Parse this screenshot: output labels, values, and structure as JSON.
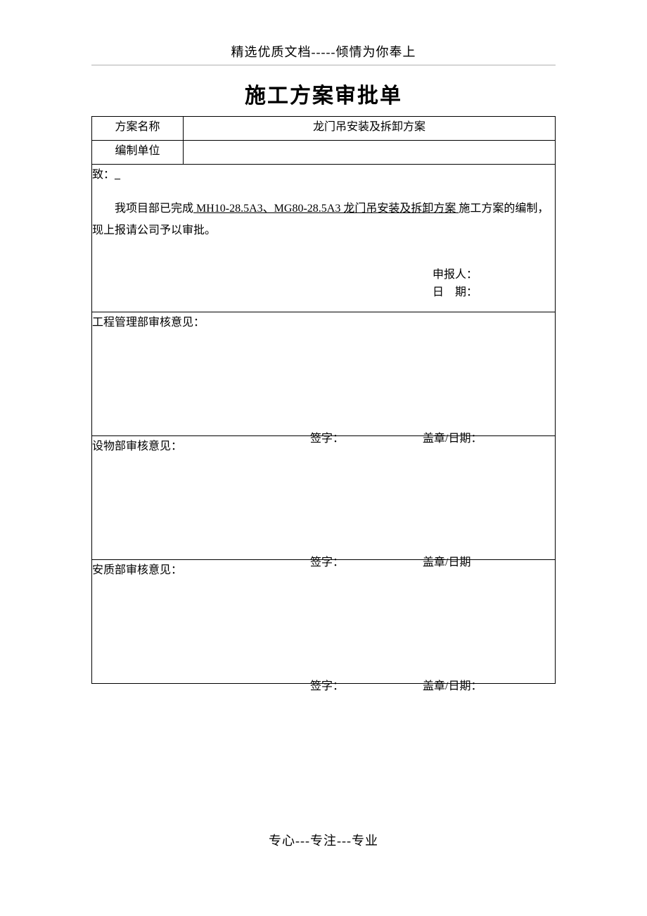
{
  "header": "精选优质文档-----倾情为你奉上",
  "title": "施工方案审批单",
  "rows": {
    "plan_name_label": "方案名称",
    "plan_name_value": "龙门吊安装及拆卸方案",
    "unit_label": "编制单位",
    "unit_value": ""
  },
  "narrative": {
    "to_prefix": "致：",
    "to_blank": "_",
    "line_prefix": "我项目部已完成",
    "line_underlined": " MH10-28.5A3、MG80-28.5A3 龙门吊安装及拆卸方案 ",
    "line_suffix": "施工方案的编制，现上报请公司予以审批。",
    "applicant_label": "申报人：",
    "date_label": "日　期："
  },
  "reviews": [
    {
      "title": "工程管理部审核意见：",
      "sign": "签字：",
      "stamp": "盖章/日期："
    },
    {
      "title": "设物部审核意见：",
      "sign": "签字：",
      "stamp": "盖章/日期"
    },
    {
      "title": "安质部审核意见：",
      "sign": "签字：",
      "stamp": "盖章/日期："
    }
  ],
  "footer": "专心---专注---专业"
}
